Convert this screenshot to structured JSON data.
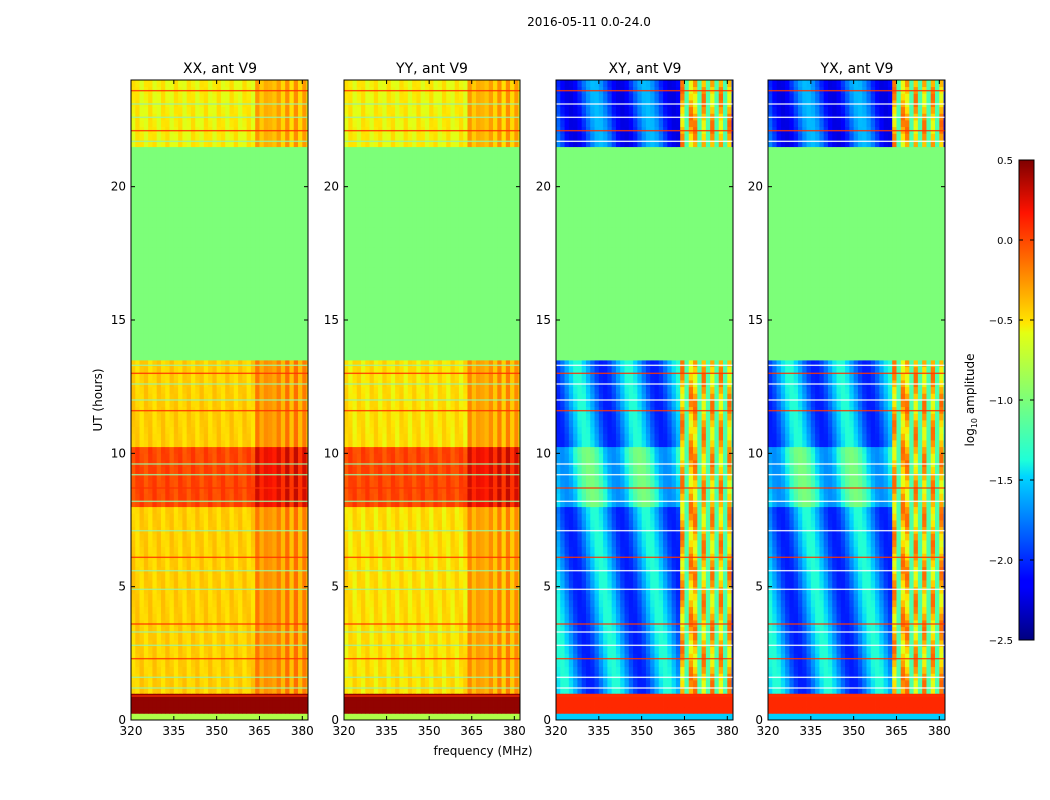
{
  "chart_data": {
    "type": "heatmap",
    "suptitle": "2016-05-11 0.0-24.0",
    "xlabel": "frequency (MHz)",
    "ylabel": "UT (hours)",
    "xlim": [
      320,
      382
    ],
    "ylim": [
      0,
      24
    ],
    "xticks": [
      "320",
      "335",
      "350",
      "365",
      "380"
    ],
    "xtick_values": [
      320,
      335,
      350,
      365,
      380
    ],
    "yticks": [
      "0",
      "5",
      "10",
      "15",
      "20"
    ],
    "ytick_values": [
      0,
      5,
      10,
      15,
      20
    ],
    "flagged_band_hours": [
      13.5,
      21.4
    ],
    "strong_band_hours": [
      7.9,
      10.2
    ],
    "bright_channel_mhz": [
      363.5,
      381
    ],
    "panels": [
      {
        "title": "XX, ant V9",
        "kind": "parallel",
        "base_log_amp": -0.45
      },
      {
        "title": "YY, ant V9",
        "kind": "parallel",
        "base_log_amp": -0.5
      },
      {
        "title": "XY, ant V9",
        "kind": "cross",
        "base_log_amp": -1.7
      },
      {
        "title": "YX, ant V9",
        "kind": "cross",
        "base_log_amp": -1.7
      }
    ],
    "colorbar": {
      "label": "log",
      "label_sub": "10",
      "label_tail": " amplitude",
      "range": [
        -2.5,
        0.5
      ],
      "ticks": [
        "0.5",
        "0.0",
        "−0.5",
        "−1.0",
        "−1.5",
        "−2.0",
        "−2.5"
      ],
      "tick_values": [
        0.5,
        0.0,
        -0.5,
        -1.0,
        -1.5,
        -2.0,
        -2.5
      ],
      "colormap": "jet"
    }
  }
}
